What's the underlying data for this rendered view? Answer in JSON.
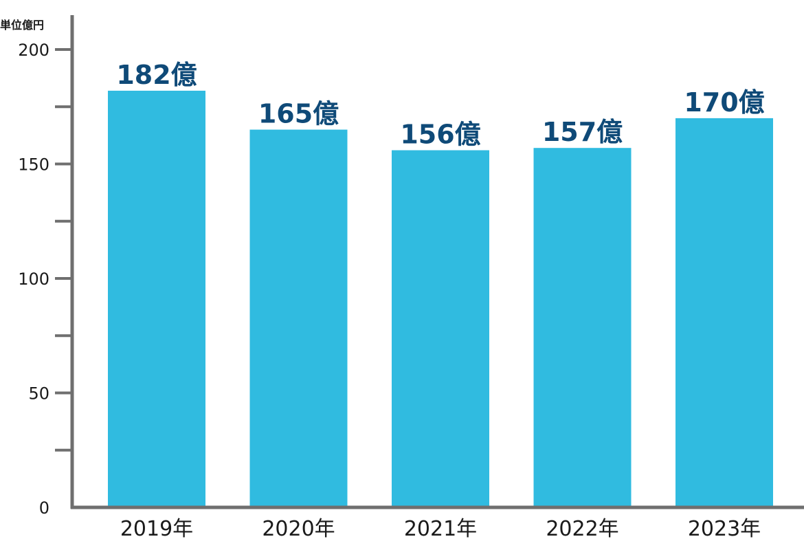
{
  "chart_data": {
    "type": "bar",
    "unit_label": "単位億円",
    "categories": [
      "2019年",
      "2020年",
      "2021年",
      "2022年",
      "2023年"
    ],
    "values": [
      182,
      165,
      156,
      157,
      170
    ],
    "data_labels": [
      "182億",
      "165億",
      "156億",
      "157億",
      "170億"
    ],
    "y_ticks": [
      0,
      50,
      100,
      150,
      200
    ],
    "ylim": [
      0,
      200
    ],
    "grid": false,
    "colors": {
      "bar": "#30bbe0",
      "axis": "#6f6f6f",
      "data_label": "#0f4a78",
      "text": "#1a1a1a"
    }
  }
}
